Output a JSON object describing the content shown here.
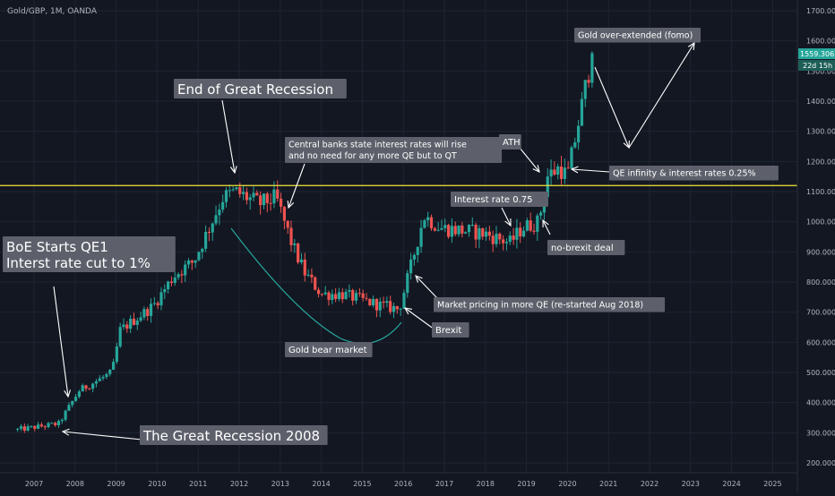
{
  "symbol_label": "Gold/GBP, 1M, OANDA",
  "colors": {
    "background": "#131722",
    "grid": "#1f2433",
    "up": "#26a69a",
    "down": "#ef5350",
    "axis_text": "#b2b5be",
    "horizontal_level": "#f5e43b",
    "label_box": "#5d606b",
    "label_text": "#ffffff",
    "arrow": "#ffffff",
    "curve": "#26a69a",
    "price_tag": "#26a69a"
  },
  "price_tag": {
    "price": "1559.306",
    "countdown": "22d 15h"
  },
  "chart_data": {
    "type": "candlestick",
    "title": "Gold/GBP, 1M, OANDA",
    "xlabel": "",
    "ylabel": "",
    "x_ticks": [
      "2007",
      "2008",
      "2009",
      "2010",
      "2011",
      "2012",
      "2013",
      "2014",
      "2015",
      "2016",
      "2017",
      "2018",
      "2019",
      "2020",
      "2021",
      "2022",
      "2023",
      "2024",
      "2025"
    ],
    "y_ticks": [
      "200.000",
      "300.000",
      "400.000",
      "500.000",
      "600.000",
      "700.000",
      "800.000",
      "900.000",
      "1000.000",
      "1100.000",
      "1200.000",
      "1300.000",
      "1400.000",
      "1500.000",
      "1600.000",
      "1700.000"
    ],
    "ylim": [
      180,
      1720
    ],
    "xlim": [
      2006.5,
      2025.7
    ],
    "grid": true,
    "horizontal_level": 1120,
    "anchors": [
      [
        2006.6,
        310
      ],
      [
        2007.6,
        330
      ],
      [
        2008.1,
        440
      ],
      [
        2008.9,
        500
      ],
      [
        2009.1,
        640
      ],
      [
        2009.9,
        720
      ],
      [
        2010.4,
        820
      ],
      [
        2010.9,
        870
      ],
      [
        2011.6,
        1080
      ],
      [
        2011.9,
        1100
      ],
      [
        2012.5,
        1060
      ],
      [
        2012.9,
        1080
      ],
      [
        2013.3,
        920
      ],
      [
        2013.6,
        830
      ],
      [
        2014.0,
        760
      ],
      [
        2014.5,
        760
      ],
      [
        2015.0,
        740
      ],
      [
        2015.5,
        720
      ],
      [
        2015.9,
        710
      ],
      [
        2016.2,
        860
      ],
      [
        2016.5,
        1020
      ],
      [
        2016.9,
        980
      ],
      [
        2017.5,
        970
      ],
      [
        2018.0,
        960
      ],
      [
        2018.6,
        930
      ],
      [
        2018.9,
        980
      ],
      [
        2019.3,
        1000
      ],
      [
        2019.5,
        1150
      ],
      [
        2019.8,
        1180
      ],
      [
        2020.0,
        1150
      ],
      [
        2020.3,
        1350
      ],
      [
        2020.6,
        1559
      ]
    ],
    "annotations": [
      "End of Great Recession",
      "Central banks state interest rates will rise and no need for any more QE but to QT",
      "BoE Starts QE1 Interst rate cut to 1%",
      "The Great Recession 2008",
      "Gold bear market",
      "Market pricing in more QE (re-started Aug 2018)",
      "Brexit",
      "Interest rate 0.75",
      "no-brexit deal",
      "ATH",
      "QE infinity & interest rates 0.25%",
      "Gold over-extended (fomo)"
    ]
  },
  "annotations": {
    "end_recession": "End of Great Recession",
    "central_banks_1": "Central banks state interest rates will rise",
    "central_banks_2": "and no need for any more QE but to QT",
    "boe_1": "BoE Starts QE1",
    "boe_2": "Interst rate cut to 1%",
    "great_recession": "The Great Recession 2008",
    "bear_market": "Gold bear market",
    "market_pricing": "Market pricing in more QE (re-started Aug 2018)",
    "brexit": "Brexit",
    "interest_075": "Interest rate 0.75",
    "no_brexit": "no-brexit deal",
    "ath": "ATH",
    "qe_infinity": "QE infinity & interest rates 0.25%",
    "over_extended": "Gold over-extended (fomo)"
  }
}
